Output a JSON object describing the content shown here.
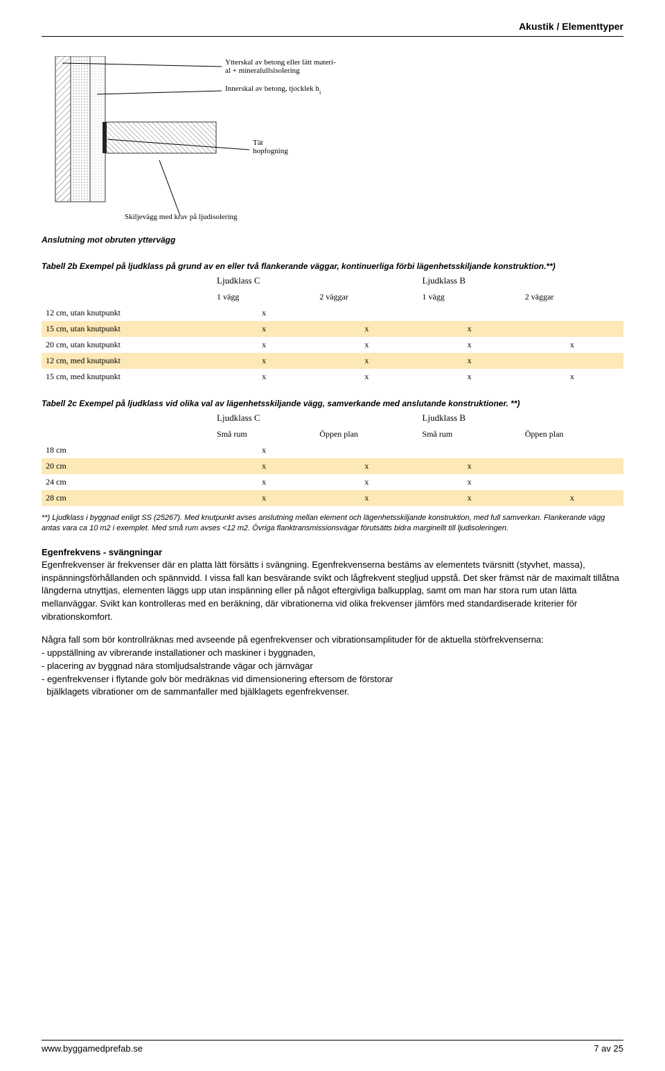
{
  "header": {
    "title": "Akustik / Elementtyper"
  },
  "diagram": {
    "title_caption": "Anslutning mot obruten yttervägg",
    "labels": {
      "l1": "Ytterskal av betong eller lätt materi-",
      "l1b": "al + mineralullsisolering",
      "l2": "Innerskal av betong, tjocklek h",
      "l2sub": "i",
      "l3": "Tät",
      "l3b": "hopfogning",
      "l4": "Skiljevägg med krav på ljudisolering"
    }
  },
  "table2b": {
    "caption": "Tabell 2b Exempel på ljudklass på grund av en eller två flankerande väggar, kontinuerliga förbi lägenhetsskiljande konstruktion.**)",
    "group_left": "Ljudklass C",
    "group_right": "Ljudklass B",
    "sub_a": "1 vägg",
    "sub_b": "2 väggar",
    "sub_c": "1 vägg",
    "sub_d": "2 väggar",
    "rows": [
      {
        "label": "12 cm, utan knutpunkt",
        "v": [
          "x",
          "",
          "",
          ""
        ]
      },
      {
        "label": "15 cm, utan knutpunkt",
        "v": [
          "x",
          "x",
          "x",
          ""
        ]
      },
      {
        "label": "20 cm, utan knutpunkt",
        "v": [
          "x",
          "x",
          "x",
          "x"
        ]
      },
      {
        "label": "12 cm, med knutpunkt",
        "v": [
          "x",
          "x",
          "x",
          ""
        ]
      },
      {
        "label": "15 cm, med knutpunkt",
        "v": [
          "x",
          "x",
          "x",
          "x"
        ]
      }
    ]
  },
  "table2c": {
    "caption": "Tabell 2c Exempel på ljudklass vid olika val av lägenhetsskiljande vägg, samverkande med anslutande konstruktioner. **)",
    "group_left": "Ljudklass C",
    "group_right": "Ljudklass B",
    "sub_a": "Små rum",
    "sub_b": "Öppen plan",
    "sub_c": "Små rum",
    "sub_d": "Öppen plan",
    "rows": [
      {
        "label": "18 cm",
        "v": [
          "x",
          "",
          "",
          ""
        ]
      },
      {
        "label": "20 cm",
        "v": [
          "x",
          "x",
          "x",
          ""
        ]
      },
      {
        "label": "24 cm",
        "v": [
          "x",
          "x",
          "x",
          ""
        ]
      },
      {
        "label": "28 cm",
        "v": [
          "x",
          "x",
          "x",
          "x"
        ]
      }
    ]
  },
  "footnote": "**) Ljudklass i byggnad enligt SS (25267). Med knutpunkt avses anslutning mellan element och lägenhetsskiljande konstruktion, med full samverkan. Flankerande vägg antas vara ca 10 m2 i exemplet. Med små rum avses <12 m2. Övriga flanktransmissionsvägar förutsätts bidra marginellt till ljudisoleringen.",
  "section": {
    "title": "Egenfrekvens - svängningar",
    "p1": "Egenfrekvenser är frekvenser där en platta lätt försätts i svängning. Egenfrekvenserna bestäms av elementets tvärsnitt (styvhet, massa), inspänningsförhållanden och spännvidd. I vissa fall kan besvärande svikt och lågfrekvent stegljud uppstå. Det sker främst när de maximalt tillåtna längderna utnyttjas, elementen läggs upp utan inspänning eller på något eftergivliga balkupplag, samt om man har stora rum utan lätta mellanväggar. Svikt kan kontrolleras med en beräkning, där vibrationerna vid olika frekvenser jämförs med standardiserade kriterier för vibrationskomfort.",
    "p2_intro": "Några fall som bör kontrollräknas med avseende på egenfrekvenser och vibrationsamplituder för de aktuella störfrekvenserna:",
    "b1": "- uppställning av vibrerande installationer och maskiner i byggnaden,",
    "b2": "- placering av byggnad nära stomljudsalstrande vägar och järnvägar",
    "b3": "- egenfrekvenser i flytande golv bör medräknas vid dimensionering eftersom de förstorar",
    "b3b": "  bjälklagets vibrationer om de sammanfaller med bjälklagets egenfrekvenser."
  },
  "footer": {
    "left": "www.byggamedprefab.se",
    "right": "7 av 25"
  },
  "colors": {
    "row_even": "#fde9b8",
    "hatch": "#888"
  }
}
